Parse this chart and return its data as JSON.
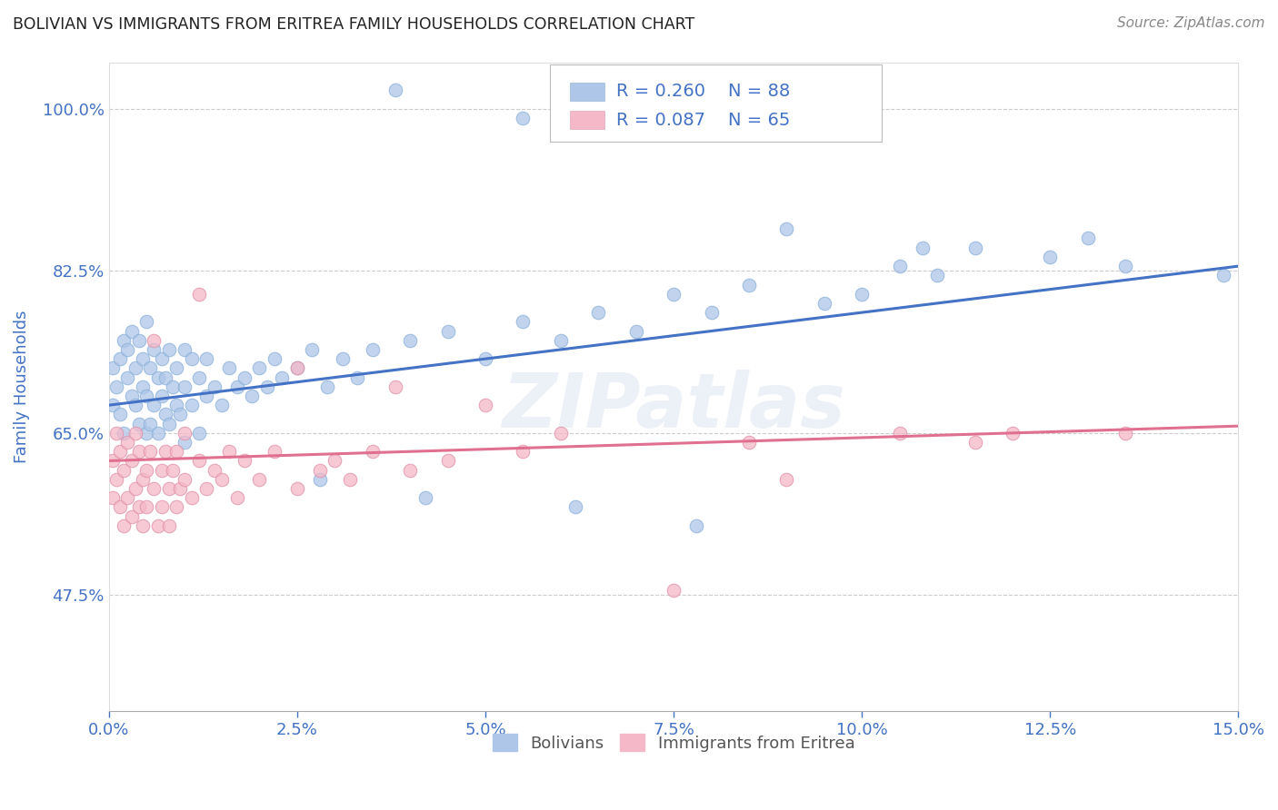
{
  "title": "BOLIVIAN VS IMMIGRANTS FROM ERITREA FAMILY HOUSEHOLDS CORRELATION CHART",
  "source": "Source: ZipAtlas.com",
  "ylabel": "Family Households",
  "xlim": [
    0.0,
    15.0
  ],
  "ylim": [
    35.0,
    105.0
  ],
  "xticks": [
    0.0,
    2.5,
    5.0,
    7.5,
    10.0,
    12.5,
    15.0
  ],
  "yticks": [
    47.5,
    65.0,
    82.5,
    100.0
  ],
  "xtick_labels": [
    "0.0%",
    "2.5%",
    "5.0%",
    "7.5%",
    "10.0%",
    "12.5%",
    "15.0%"
  ],
  "ytick_labels": [
    "47.5%",
    "65.0%",
    "82.5%",
    "100.0%"
  ],
  "tick_color": "#4472c4",
  "grid_color": "#cccccc",
  "background_color": "#ffffff",
  "source_color": "#888888",
  "watermark": "ZIPatlas",
  "bolivians_color": "#aec6e8",
  "eritrea_color": "#f4b8c8",
  "bolivians_line_color": "#4472c4",
  "eritrea_line_color": "#e07090",
  "legend_R1": "R = 0.260",
  "legend_N1": "N = 88",
  "legend_R2": "R = 0.087",
  "legend_N2": "N = 65",
  "legend_label1": "Bolivians",
  "legend_label2": "Immigrants from Eritrea",
  "blue_intercept": 68.0,
  "blue_slope": 1.0,
  "pink_intercept": 62.0,
  "pink_slope": 0.25,
  "bolivians_x": [
    0.05,
    0.05,
    0.1,
    0.15,
    0.15,
    0.2,
    0.2,
    0.25,
    0.25,
    0.3,
    0.3,
    0.35,
    0.35,
    0.4,
    0.4,
    0.45,
    0.45,
    0.5,
    0.5,
    0.5,
    0.55,
    0.55,
    0.6,
    0.6,
    0.65,
    0.65,
    0.7,
    0.7,
    0.75,
    0.75,
    0.8,
    0.8,
    0.85,
    0.9,
    0.9,
    0.95,
    1.0,
    1.0,
    1.0,
    1.1,
    1.1,
    1.2,
    1.2,
    1.3,
    1.3,
    1.4,
    1.5,
    1.6,
    1.7,
    1.8,
    1.9,
    2.0,
    2.1,
    2.2,
    2.3,
    2.5,
    2.7,
    2.9,
    3.1,
    3.3,
    3.5,
    4.0,
    4.5,
    5.0,
    5.5,
    6.0,
    6.5,
    7.0,
    7.5,
    8.0,
    8.5,
    9.5,
    10.0,
    10.5,
    11.0,
    11.5,
    12.5,
    13.0,
    2.8,
    4.2,
    6.2,
    7.8,
    3.8,
    5.5,
    9.0,
    10.8,
    13.5,
    14.8
  ],
  "bolivians_y": [
    72.0,
    68.0,
    70.0,
    67.0,
    73.0,
    75.0,
    65.0,
    71.0,
    74.0,
    69.0,
    76.0,
    68.0,
    72.0,
    66.0,
    75.0,
    70.0,
    73.0,
    65.0,
    69.0,
    77.0,
    72.0,
    66.0,
    74.0,
    68.0,
    71.0,
    65.0,
    69.0,
    73.0,
    67.0,
    71.0,
    66.0,
    74.0,
    70.0,
    68.0,
    72.0,
    67.0,
    64.0,
    70.0,
    74.0,
    68.0,
    73.0,
    65.0,
    71.0,
    69.0,
    73.0,
    70.0,
    68.0,
    72.0,
    70.0,
    71.0,
    69.0,
    72.0,
    70.0,
    73.0,
    71.0,
    72.0,
    74.0,
    70.0,
    73.0,
    71.0,
    74.0,
    75.0,
    76.0,
    73.0,
    77.0,
    75.0,
    78.0,
    76.0,
    80.0,
    78.0,
    81.0,
    79.0,
    80.0,
    83.0,
    82.0,
    85.0,
    84.0,
    86.0,
    60.0,
    58.0,
    57.0,
    55.0,
    102.0,
    99.0,
    87.0,
    85.0,
    83.0,
    82.0
  ],
  "eritrea_x": [
    0.05,
    0.05,
    0.1,
    0.1,
    0.15,
    0.15,
    0.2,
    0.2,
    0.25,
    0.25,
    0.3,
    0.3,
    0.35,
    0.35,
    0.4,
    0.4,
    0.45,
    0.45,
    0.5,
    0.5,
    0.55,
    0.6,
    0.65,
    0.7,
    0.7,
    0.75,
    0.8,
    0.8,
    0.85,
    0.9,
    0.9,
    0.95,
    1.0,
    1.0,
    1.1,
    1.2,
    1.3,
    1.4,
    1.5,
    1.6,
    1.7,
    1.8,
    2.0,
    2.2,
    2.5,
    2.8,
    3.0,
    3.2,
    3.5,
    4.0,
    4.5,
    5.5,
    6.0,
    7.5,
    9.0,
    10.5,
    11.5,
    12.0,
    13.5,
    0.6,
    1.2,
    2.5,
    3.8,
    5.0,
    8.5
  ],
  "eritrea_y": [
    62.0,
    58.0,
    65.0,
    60.0,
    57.0,
    63.0,
    55.0,
    61.0,
    58.0,
    64.0,
    56.0,
    62.0,
    59.0,
    65.0,
    57.0,
    63.0,
    60.0,
    55.0,
    61.0,
    57.0,
    63.0,
    59.0,
    55.0,
    61.0,
    57.0,
    63.0,
    59.0,
    55.0,
    61.0,
    57.0,
    63.0,
    59.0,
    60.0,
    65.0,
    58.0,
    62.0,
    59.0,
    61.0,
    60.0,
    63.0,
    58.0,
    62.0,
    60.0,
    63.0,
    59.0,
    61.0,
    62.0,
    60.0,
    63.0,
    61.0,
    62.0,
    63.0,
    65.0,
    48.0,
    60.0,
    65.0,
    64.0,
    65.0,
    65.0,
    75.0,
    80.0,
    72.0,
    70.0,
    68.0,
    64.0
  ]
}
